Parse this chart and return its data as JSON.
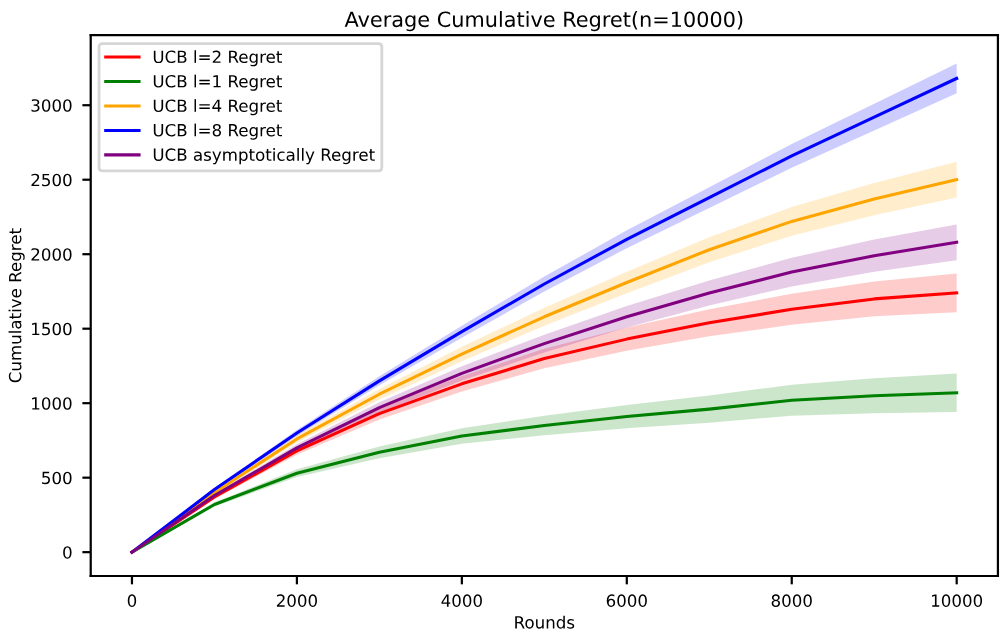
{
  "chart_data": {
    "type": "line",
    "title": "Average Cumulative Regret(n=10000)",
    "xlabel": "Rounds",
    "ylabel": "Cumulative Regret",
    "x": [
      0,
      1000,
      2000,
      3000,
      4000,
      5000,
      6000,
      7000,
      8000,
      9000,
      10000
    ],
    "series": [
      {
        "name": "UCB l=2 Regret",
        "color": "#ff0000",
        "values": [
          0,
          370,
          680,
          930,
          1130,
          1300,
          1430,
          1540,
          1630,
          1700,
          1740
        ],
        "lower": [
          0,
          357,
          654,
          891,
          1078,
          1235,
          1352,
          1449,
          1526,
          1583,
          1610
        ],
        "upper": [
          0,
          383,
          706,
          969,
          1182,
          1365,
          1508,
          1631,
          1734,
          1817,
          1870
        ]
      },
      {
        "name": "UCB l=1 Regret",
        "color": "#008000",
        "values": [
          0,
          320,
          530,
          670,
          780,
          850,
          910,
          960,
          1020,
          1050,
          1070
        ],
        "lower": [
          0,
          307,
          504,
          631,
          728,
          785,
          832,
          869,
          916,
          933,
          940
        ],
        "upper": [
          0,
          333,
          556,
          709,
          832,
          915,
          988,
          1051,
          1124,
          1167,
          1200
        ]
      },
      {
        "name": "UCB l=4 Regret",
        "color": "#ffa500",
        "values": [
          0,
          400,
          760,
          1060,
          1330,
          1580,
          1810,
          2030,
          2220,
          2370,
          2500
        ],
        "lower": [
          0,
          388,
          736,
          1024,
          1282,
          1520,
          1738,
          1946,
          2124,
          2262,
          2380
        ],
        "upper": [
          0,
          412,
          784,
          1096,
          1378,
          1640,
          1882,
          2114,
          2316,
          2478,
          2620
        ]
      },
      {
        "name": "UCB l=8 Regret",
        "color": "#0000ff",
        "values": [
          0,
          420,
          800,
          1150,
          1480,
          1800,
          2100,
          2380,
          2660,
          2920,
          3180
        ],
        "lower": [
          0,
          410,
          780,
          1120,
          1440,
          1750,
          2040,
          2310,
          2580,
          2830,
          3080
        ],
        "upper": [
          0,
          430,
          820,
          1180,
          1520,
          1850,
          2160,
          2450,
          2740,
          3010,
          3280
        ]
      },
      {
        "name": "UCB asymptotically Regret",
        "color": "#800080",
        "values": [
          0,
          380,
          700,
          970,
          1200,
          1400,
          1580,
          1740,
          1880,
          1990,
          2080
        ],
        "lower": [
          0,
          368,
          676,
          934,
          1152,
          1340,
          1508,
          1656,
          1784,
          1882,
          1960
        ],
        "upper": [
          0,
          392,
          724,
          1006,
          1248,
          1460,
          1652,
          1824,
          1976,
          2098,
          2200
        ]
      }
    ],
    "xlim": [
      -500,
      10500
    ],
    "ylim": [
      -160,
      3470
    ],
    "xticks": [
      0,
      2000,
      4000,
      6000,
      8000,
      10000
    ],
    "yticks": [
      0,
      500,
      1000,
      1500,
      2000,
      2500,
      3000
    ],
    "legend": "top left",
    "grid": false
  }
}
